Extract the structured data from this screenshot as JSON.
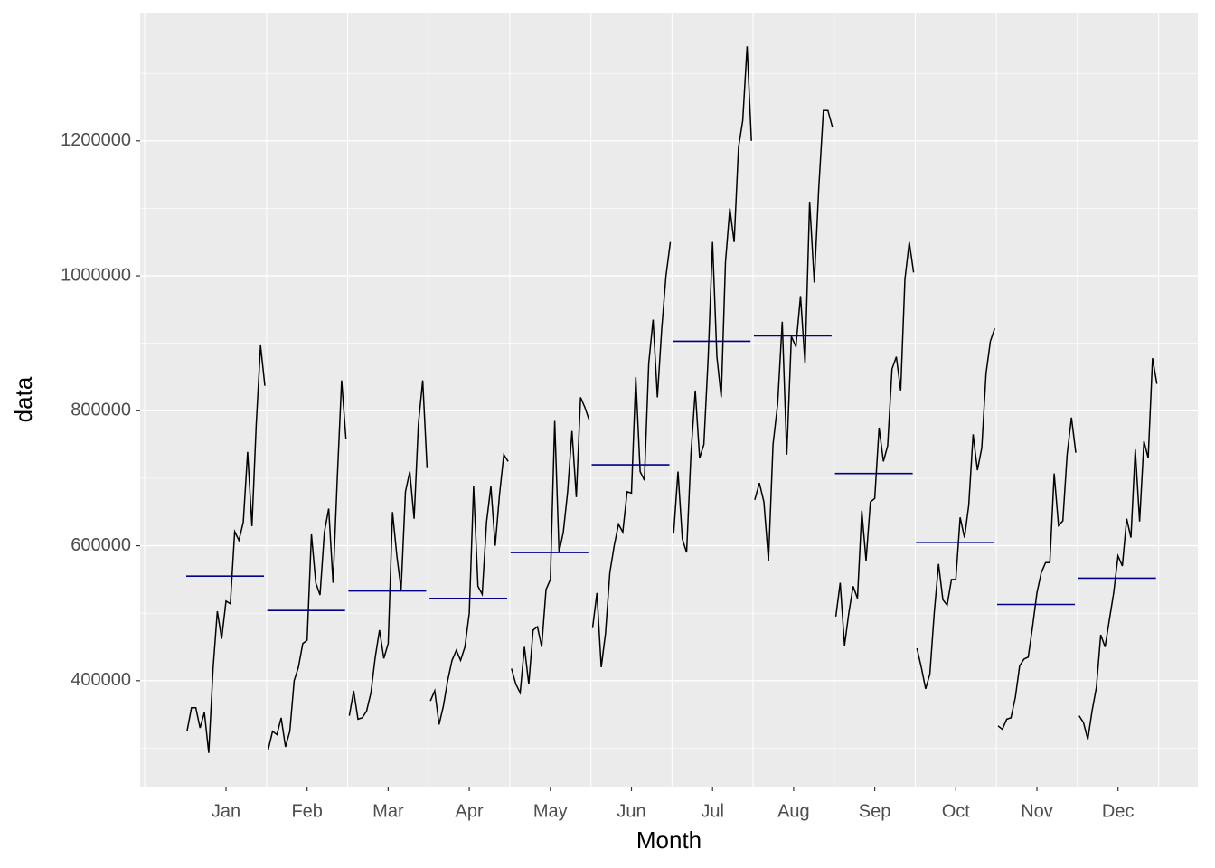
{
  "chart_data": {
    "type": "subseries",
    "x_label": "Month",
    "y_label": "data",
    "categories": [
      "Jan",
      "Feb",
      "Mar",
      "Apr",
      "May",
      "Jun",
      "Jul",
      "Aug",
      "Sep",
      "Oct",
      "Nov",
      "Dec"
    ],
    "subseries": [
      [
        326000,
        360000,
        360000,
        330000,
        353000,
        293000,
        418000,
        503000,
        462000,
        518000,
        514000,
        621000,
        608000,
        635000,
        739000,
        629000,
        779000,
        897000,
        837000
      ],
      [
        298000,
        325000,
        320000,
        345000,
        302000,
        325000,
        400000,
        420000,
        455000,
        460000,
        617000,
        545000,
        527000,
        620000,
        655000,
        545000,
        700000,
        845000,
        758000
      ],
      [
        348000,
        385000,
        343000,
        345000,
        355000,
        382000,
        435000,
        475000,
        433000,
        455000,
        650000,
        585000,
        535000,
        680000,
        710000,
        640000,
        780000,
        845000,
        715000
      ],
      [
        370000,
        385000,
        335000,
        362000,
        400000,
        430000,
        445000,
        430000,
        450000,
        500000,
        688000,
        540000,
        528000,
        635000,
        688000,
        600000,
        675000,
        735000,
        725000
      ],
      [
        418000,
        395000,
        382000,
        450000,
        395000,
        475000,
        480000,
        450000,
        535000,
        550000,
        785000,
        590000,
        620000,
        680000,
        770000,
        672000,
        820000,
        805000,
        786000
      ],
      [
        478000,
        530000,
        420000,
        470000,
        560000,
        600000,
        632000,
        620000,
        680000,
        678000,
        850000,
        710000,
        697000,
        870000,
        935000,
        820000,
        920000,
        1000000,
        1050000
      ],
      [
        618000,
        710000,
        610000,
        590000,
        735000,
        830000,
        730000,
        750000,
        880000,
        1050000,
        880000,
        820000,
        1020000,
        1100000,
        1050000,
        1190000,
        1230000,
        1340000,
        1200000
      ],
      [
        668000,
        693000,
        665000,
        578000,
        750000,
        810000,
        932000,
        735000,
        910000,
        895000,
        970000,
        870000,
        1110000,
        990000,
        1130000,
        1245000,
        1245000,
        1220000
      ],
      [
        495000,
        545000,
        452000,
        500000,
        540000,
        522000,
        652000,
        578000,
        665000,
        670000,
        775000,
        725000,
        748000,
        862000,
        880000,
        830000,
        995000,
        1050000,
        1005000
      ],
      [
        448000,
        420000,
        388000,
        410000,
        500000,
        573000,
        520000,
        512000,
        550000,
        550000,
        642000,
        612000,
        660000,
        765000,
        712000,
        745000,
        855000,
        903000,
        922000
      ],
      [
        333000,
        328000,
        343000,
        345000,
        375000,
        422000,
        432000,
        435000,
        480000,
        530000,
        560000,
        575000,
        575000,
        707000,
        630000,
        637000,
        735000,
        790000,
        738000
      ],
      [
        348000,
        338000,
        313000,
        355000,
        390000,
        468000,
        450000,
        490000,
        530000,
        585000,
        570000,
        640000,
        612000,
        743000,
        636000,
        755000,
        730000,
        878000,
        840000
      ]
    ],
    "means": [
      555000,
      504000,
      533000,
      522000,
      590000,
      720000,
      903000,
      911000,
      707000,
      605000,
      513000,
      552000
    ],
    "line_color": "#000000",
    "mean_color": "#00008b",
    "ylim": [
      243000,
      1390000
    ],
    "yticks": [
      400000,
      600000,
      800000,
      1000000,
      1200000
    ],
    "grid": true
  }
}
